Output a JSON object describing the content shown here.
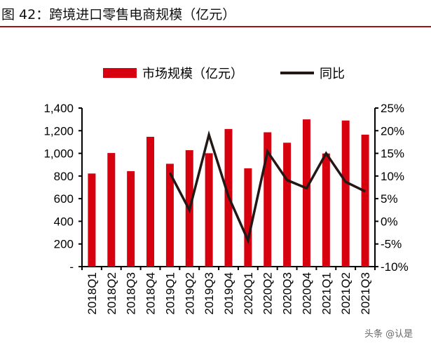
{
  "title": "图 42：跨境进口零售电商规模（亿元）",
  "watermark": "头条 @认是",
  "chart_data": {
    "type": "bar+line",
    "title": "",
    "categories": [
      "2018Q1",
      "2018Q2",
      "2018Q3",
      "2018Q4",
      "2019Q1",
      "2019Q2",
      "2019Q3",
      "2019Q4",
      "2020Q1",
      "2020Q2",
      "2020Q3",
      "2020Q4",
      "2021Q1",
      "2021Q2",
      "2021Q3"
    ],
    "series": [
      {
        "name": "市场规模（亿元）",
        "type": "bar",
        "axis": "left",
        "color": "#d7000f",
        "values": [
          822,
          1003,
          843,
          1146,
          908,
          1028,
          1001,
          1215,
          868,
          1186,
          1094,
          1300,
          999,
          1290,
          1165
        ]
      },
      {
        "name": "同比",
        "type": "line",
        "axis": "right",
        "color": "#231815",
        "values": [
          null,
          null,
          null,
          null,
          10.7,
          2.5,
          19.1,
          5.5,
          -4.2,
          15.4,
          9.1,
          7.3,
          15.0,
          8.7,
          6.6
        ]
      }
    ],
    "left_axis": {
      "ylim": [
        0,
        1400
      ],
      "ticks": [
        "-",
        "200",
        "400",
        "600",
        "800",
        "1,000",
        "1,200",
        "1,400"
      ]
    },
    "right_axis": {
      "ylim": [
        -10,
        25
      ],
      "ticks": [
        "-10%",
        "-5%",
        "0%",
        "5%",
        "10%",
        "15%",
        "20%",
        "25%"
      ]
    },
    "legend_position": "top",
    "grid": false
  }
}
